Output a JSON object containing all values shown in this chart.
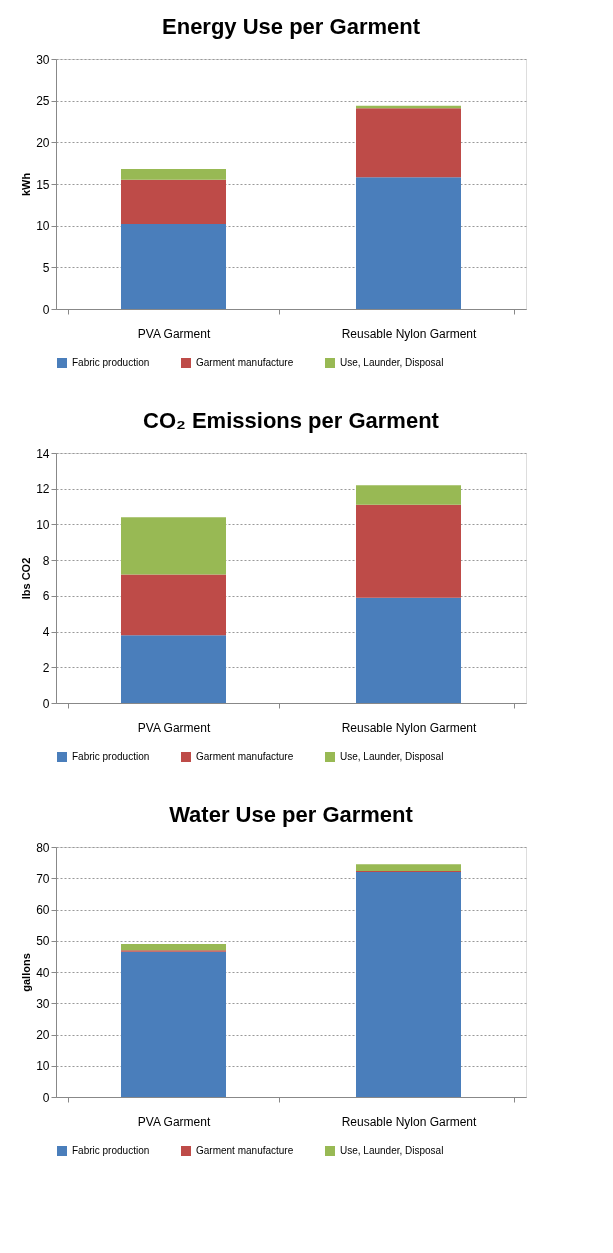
{
  "chart_data": [
    {
      "type": "bar",
      "title": "Energy Use per Garment",
      "ylabel": "kWh",
      "categories": [
        "PVA Garment",
        "Reusable Nylon Garment"
      ],
      "stacked": true,
      "series": [
        {
          "name": "Fabric production",
          "color": "#4a7ebb",
          "values": [
            10.2,
            15.8
          ]
        },
        {
          "name": "Garment manufacture",
          "color": "#be4b48",
          "values": [
            5.3,
            8.3
          ]
        },
        {
          "name": "Use, Launder, Disposal",
          "color": "#98b954",
          "values": [
            1.3,
            0.3
          ]
        }
      ],
      "ylim": [
        0,
        30
      ],
      "yticks": [
        0,
        5,
        10,
        15,
        20,
        25,
        30
      ],
      "grid": "y",
      "legend": "bottom"
    },
    {
      "type": "bar",
      "title": "CO₂ Emissions per Garment",
      "ylabel": "lbs CO2",
      "categories": [
        "PVA Garment",
        "Reusable Nylon Garment"
      ],
      "stacked": true,
      "series": [
        {
          "name": "Fabric production",
          "color": "#4a7ebb",
          "values": [
            3.8,
            5.9
          ]
        },
        {
          "name": "Garment manufacture",
          "color": "#be4b48",
          "values": [
            3.4,
            5.2
          ]
        },
        {
          "name": "Use, Launder, Disposal",
          "color": "#98b954",
          "values": [
            3.2,
            1.1
          ]
        }
      ],
      "ylim": [
        0,
        14
      ],
      "yticks": [
        0,
        2,
        4,
        6,
        8,
        10,
        12,
        14
      ],
      "grid": "y",
      "legend": "bottom"
    },
    {
      "type": "bar",
      "title": "Water Use per Garment",
      "ylabel": "gallons",
      "categories": [
        "PVA Garment",
        "Reusable Nylon Garment"
      ],
      "stacked": true,
      "series": [
        {
          "name": "Fabric production",
          "color": "#4a7ebb",
          "values": [
            46.5,
            72
          ]
        },
        {
          "name": "Garment manufacture",
          "color": "#be4b48",
          "values": [
            0.5,
            0.3
          ]
        },
        {
          "name": "Use, Launder, Disposal",
          "color": "#98b954",
          "values": [
            2,
            2.2
          ]
        }
      ],
      "ylim": [
        0,
        80
      ],
      "yticks": [
        0,
        10,
        20,
        30,
        40,
        50,
        60,
        70,
        80
      ],
      "grid": "y",
      "legend": "bottom"
    }
  ]
}
